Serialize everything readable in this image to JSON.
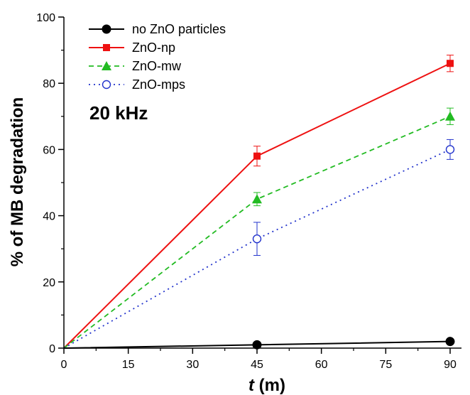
{
  "chart_data": {
    "type": "line",
    "title": "",
    "xlabel_italic": "t",
    "xlabel_rest": " (m)",
    "ylabel": "% of MB degradation",
    "annotation": "20 kHz",
    "xlim": [
      0,
      90
    ],
    "ylim": [
      0,
      100
    ],
    "xticks": [
      0,
      15,
      30,
      45,
      60,
      75,
      90
    ],
    "yticks": [
      0,
      20,
      40,
      60,
      80,
      100
    ],
    "grid": false,
    "legend_position": "top-left",
    "x": [
      0,
      45,
      90
    ],
    "series": [
      {
        "name": "no ZnO particles",
        "values": [
          0,
          1,
          2
        ],
        "errors": [
          0,
          0,
          0
        ],
        "color": "#000000",
        "dash": "solid",
        "marker": "circle-filled"
      },
      {
        "name": "ZnO-np",
        "values": [
          0,
          58,
          86
        ],
        "errors": [
          0,
          3,
          2.5
        ],
        "color": "#ee1111",
        "dash": "solid",
        "marker": "square-filled"
      },
      {
        "name": "ZnO-mw",
        "values": [
          0,
          45,
          70
        ],
        "errors": [
          0,
          2,
          2.5
        ],
        "color": "#22bb22",
        "dash": "dashed",
        "marker": "triangle-filled"
      },
      {
        "name": "ZnO-mps",
        "values": [
          0,
          33,
          60
        ],
        "errors": [
          0,
          5,
          3
        ],
        "color": "#2233cc",
        "dash": "dotted",
        "marker": "circle-open"
      }
    ]
  }
}
